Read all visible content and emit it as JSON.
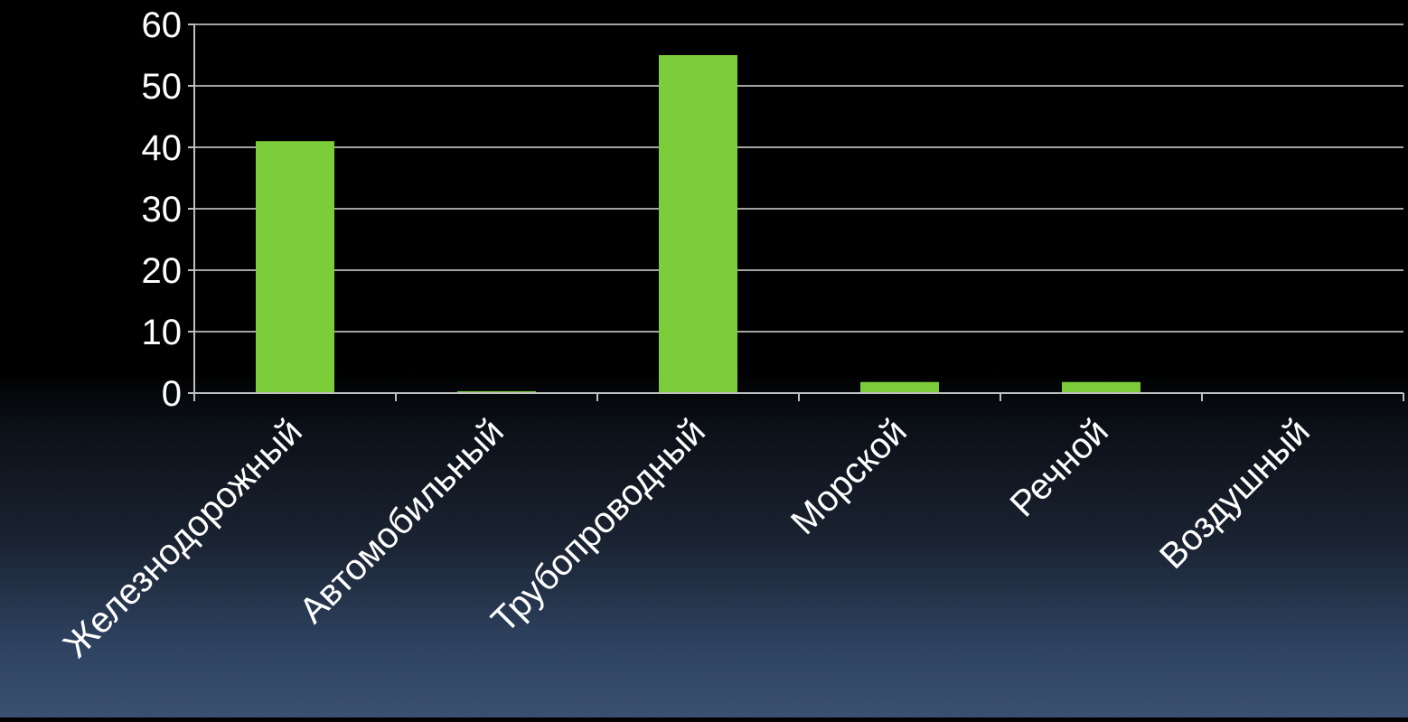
{
  "chart_data": {
    "type": "bar",
    "title": "",
    "xlabel": "",
    "ylabel": "",
    "categories": [
      "Железнодорожный",
      "Автомобильный",
      "Трубопроводный",
      "Морской",
      "Речной",
      "Воздушный"
    ],
    "values": [
      41,
      0.3,
      55,
      1.8,
      1.8,
      0
    ],
    "ylim": [
      0,
      60
    ],
    "yticks": [
      0,
      10,
      20,
      30,
      40,
      50,
      60
    ],
    "grid": true,
    "legend": "none",
    "colors": {
      "bar": "#7dcd3a",
      "grid": "#d9d9d9",
      "axis": "#bfbfbf",
      "text": "#ffffff"
    }
  }
}
